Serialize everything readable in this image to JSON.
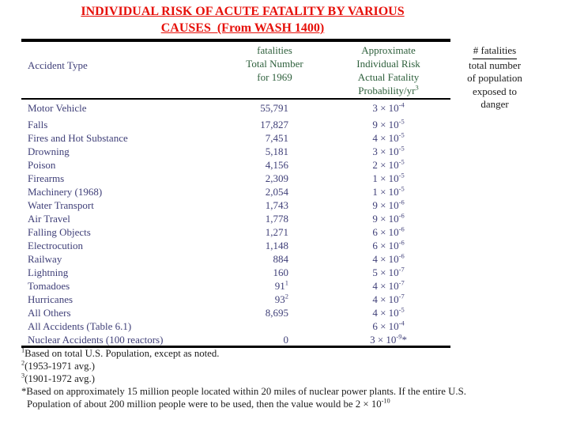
{
  "title": {
    "line1": "INDIVIDUAL RISK OF ACUTE FATALITY BY VARIOUS",
    "line2": "CAUSES  (From WASH 1400)"
  },
  "table": {
    "header": {
      "col1": "Accident Type",
      "col2_lines": [
        "fatalities",
        "Total Number",
        "for 1969"
      ],
      "col3_lines": [
        "Approximate",
        "Individual Risk",
        "Actual Fatality"
      ],
      "col3_line4": {
        "text": "Probability/yr",
        "sup": "3"
      }
    },
    "rows": [
      {
        "type": "Motor Vehicle",
        "fatalities": "55,791",
        "fat_sup": "",
        "risk_mantissa": "3",
        "risk_exp": "-4",
        "risk_note": ""
      },
      {
        "type": "Falls",
        "fatalities": "17,827",
        "fat_sup": "",
        "risk_mantissa": "9",
        "risk_exp": "-5",
        "risk_note": ""
      },
      {
        "type": "Fires and Hot Substance",
        "fatalities": "7,451",
        "fat_sup": "",
        "risk_mantissa": "4",
        "risk_exp": "-5",
        "risk_note": ""
      },
      {
        "type": "Drowning",
        "fatalities": "5,181",
        "fat_sup": "",
        "risk_mantissa": "3",
        "risk_exp": "-5",
        "risk_note": ""
      },
      {
        "type": "Poison",
        "fatalities": "4,156",
        "fat_sup": "",
        "risk_mantissa": "2",
        "risk_exp": "-5",
        "risk_note": ""
      },
      {
        "type": "Firearms",
        "fatalities": "2,309",
        "fat_sup": "",
        "risk_mantissa": "1",
        "risk_exp": "-5",
        "risk_note": ""
      },
      {
        "type": "Machinery (1968)",
        "fatalities": "2,054",
        "fat_sup": "",
        "risk_mantissa": "1",
        "risk_exp": "-5",
        "risk_note": ""
      },
      {
        "type": "Water Transport",
        "fatalities": "1,743",
        "fat_sup": "",
        "risk_mantissa": "9",
        "risk_exp": "-6",
        "risk_note": ""
      },
      {
        "type": "Air Travel",
        "fatalities": "1,778",
        "fat_sup": "",
        "risk_mantissa": "9",
        "risk_exp": "-6",
        "risk_note": ""
      },
      {
        "type": "Falling Objects",
        "fatalities": "1,271",
        "fat_sup": "",
        "risk_mantissa": "6",
        "risk_exp": "-6",
        "risk_note": ""
      },
      {
        "type": "Electrocution",
        "fatalities": "1,148",
        "fat_sup": "",
        "risk_mantissa": "6",
        "risk_exp": "-6",
        "risk_note": ""
      },
      {
        "type": "Railway",
        "fatalities": "884",
        "fat_sup": "",
        "risk_mantissa": "4",
        "risk_exp": "-6",
        "risk_note": ""
      },
      {
        "type": "Lightning",
        "fatalities": "160",
        "fat_sup": "",
        "risk_mantissa": "5",
        "risk_exp": "-7",
        "risk_note": ""
      },
      {
        "type": "Tomadoes",
        "fatalities": "91",
        "fat_sup": "1",
        "risk_mantissa": "4",
        "risk_exp": "-7",
        "risk_note": ""
      },
      {
        "type": "Hurricanes",
        "fatalities": "93",
        "fat_sup": "2",
        "risk_mantissa": "4",
        "risk_exp": "-7",
        "risk_note": ""
      },
      {
        "type": "All Others",
        "fatalities": "8,695",
        "fat_sup": "",
        "risk_mantissa": "4",
        "risk_exp": "-5",
        "risk_note": ""
      },
      {
        "type": "All Accidents (Table 6.1)",
        "fatalities": "",
        "fat_sup": "",
        "risk_mantissa": "6",
        "risk_exp": "-4",
        "risk_note": ""
      },
      {
        "type": "Nuclear Accidents (100 reactors)",
        "fatalities": "0",
        "fat_sup": "",
        "risk_mantissa": "3",
        "risk_exp": "-9",
        "risk_note": "*"
      }
    ]
  },
  "side_note": {
    "numerator": "# fatalities",
    "denominator_lines": [
      "total number",
      "of population",
      "exposed to",
      "danger"
    ]
  },
  "footnotes": [
    {
      "sup": "1",
      "prefix": "",
      "text": "Based on total U.S. Population, except as noted.",
      "tail_sup": ""
    },
    {
      "sup": "2",
      "prefix": "",
      "text": "(1953-1971 avg.)",
      "tail_sup": ""
    },
    {
      "sup": "3",
      "prefix": "",
      "text": "(1901-1972 avg.)",
      "tail_sup": ""
    },
    {
      "sup": "",
      "prefix": "*",
      "text": "Based on approximately 15 million people located within 20 miles of nuclear power plants. If the entire U.S. Population of about 200 million people were to be used, then the value would be 2 × 10",
      "tail_sup": "-10"
    }
  ],
  "colors": {
    "title_red": "#e6100a",
    "header_green": "#2d5f3b",
    "body_navy": "#3f3f78",
    "text_black": "#1c1c1c",
    "background": "#ffffff"
  }
}
